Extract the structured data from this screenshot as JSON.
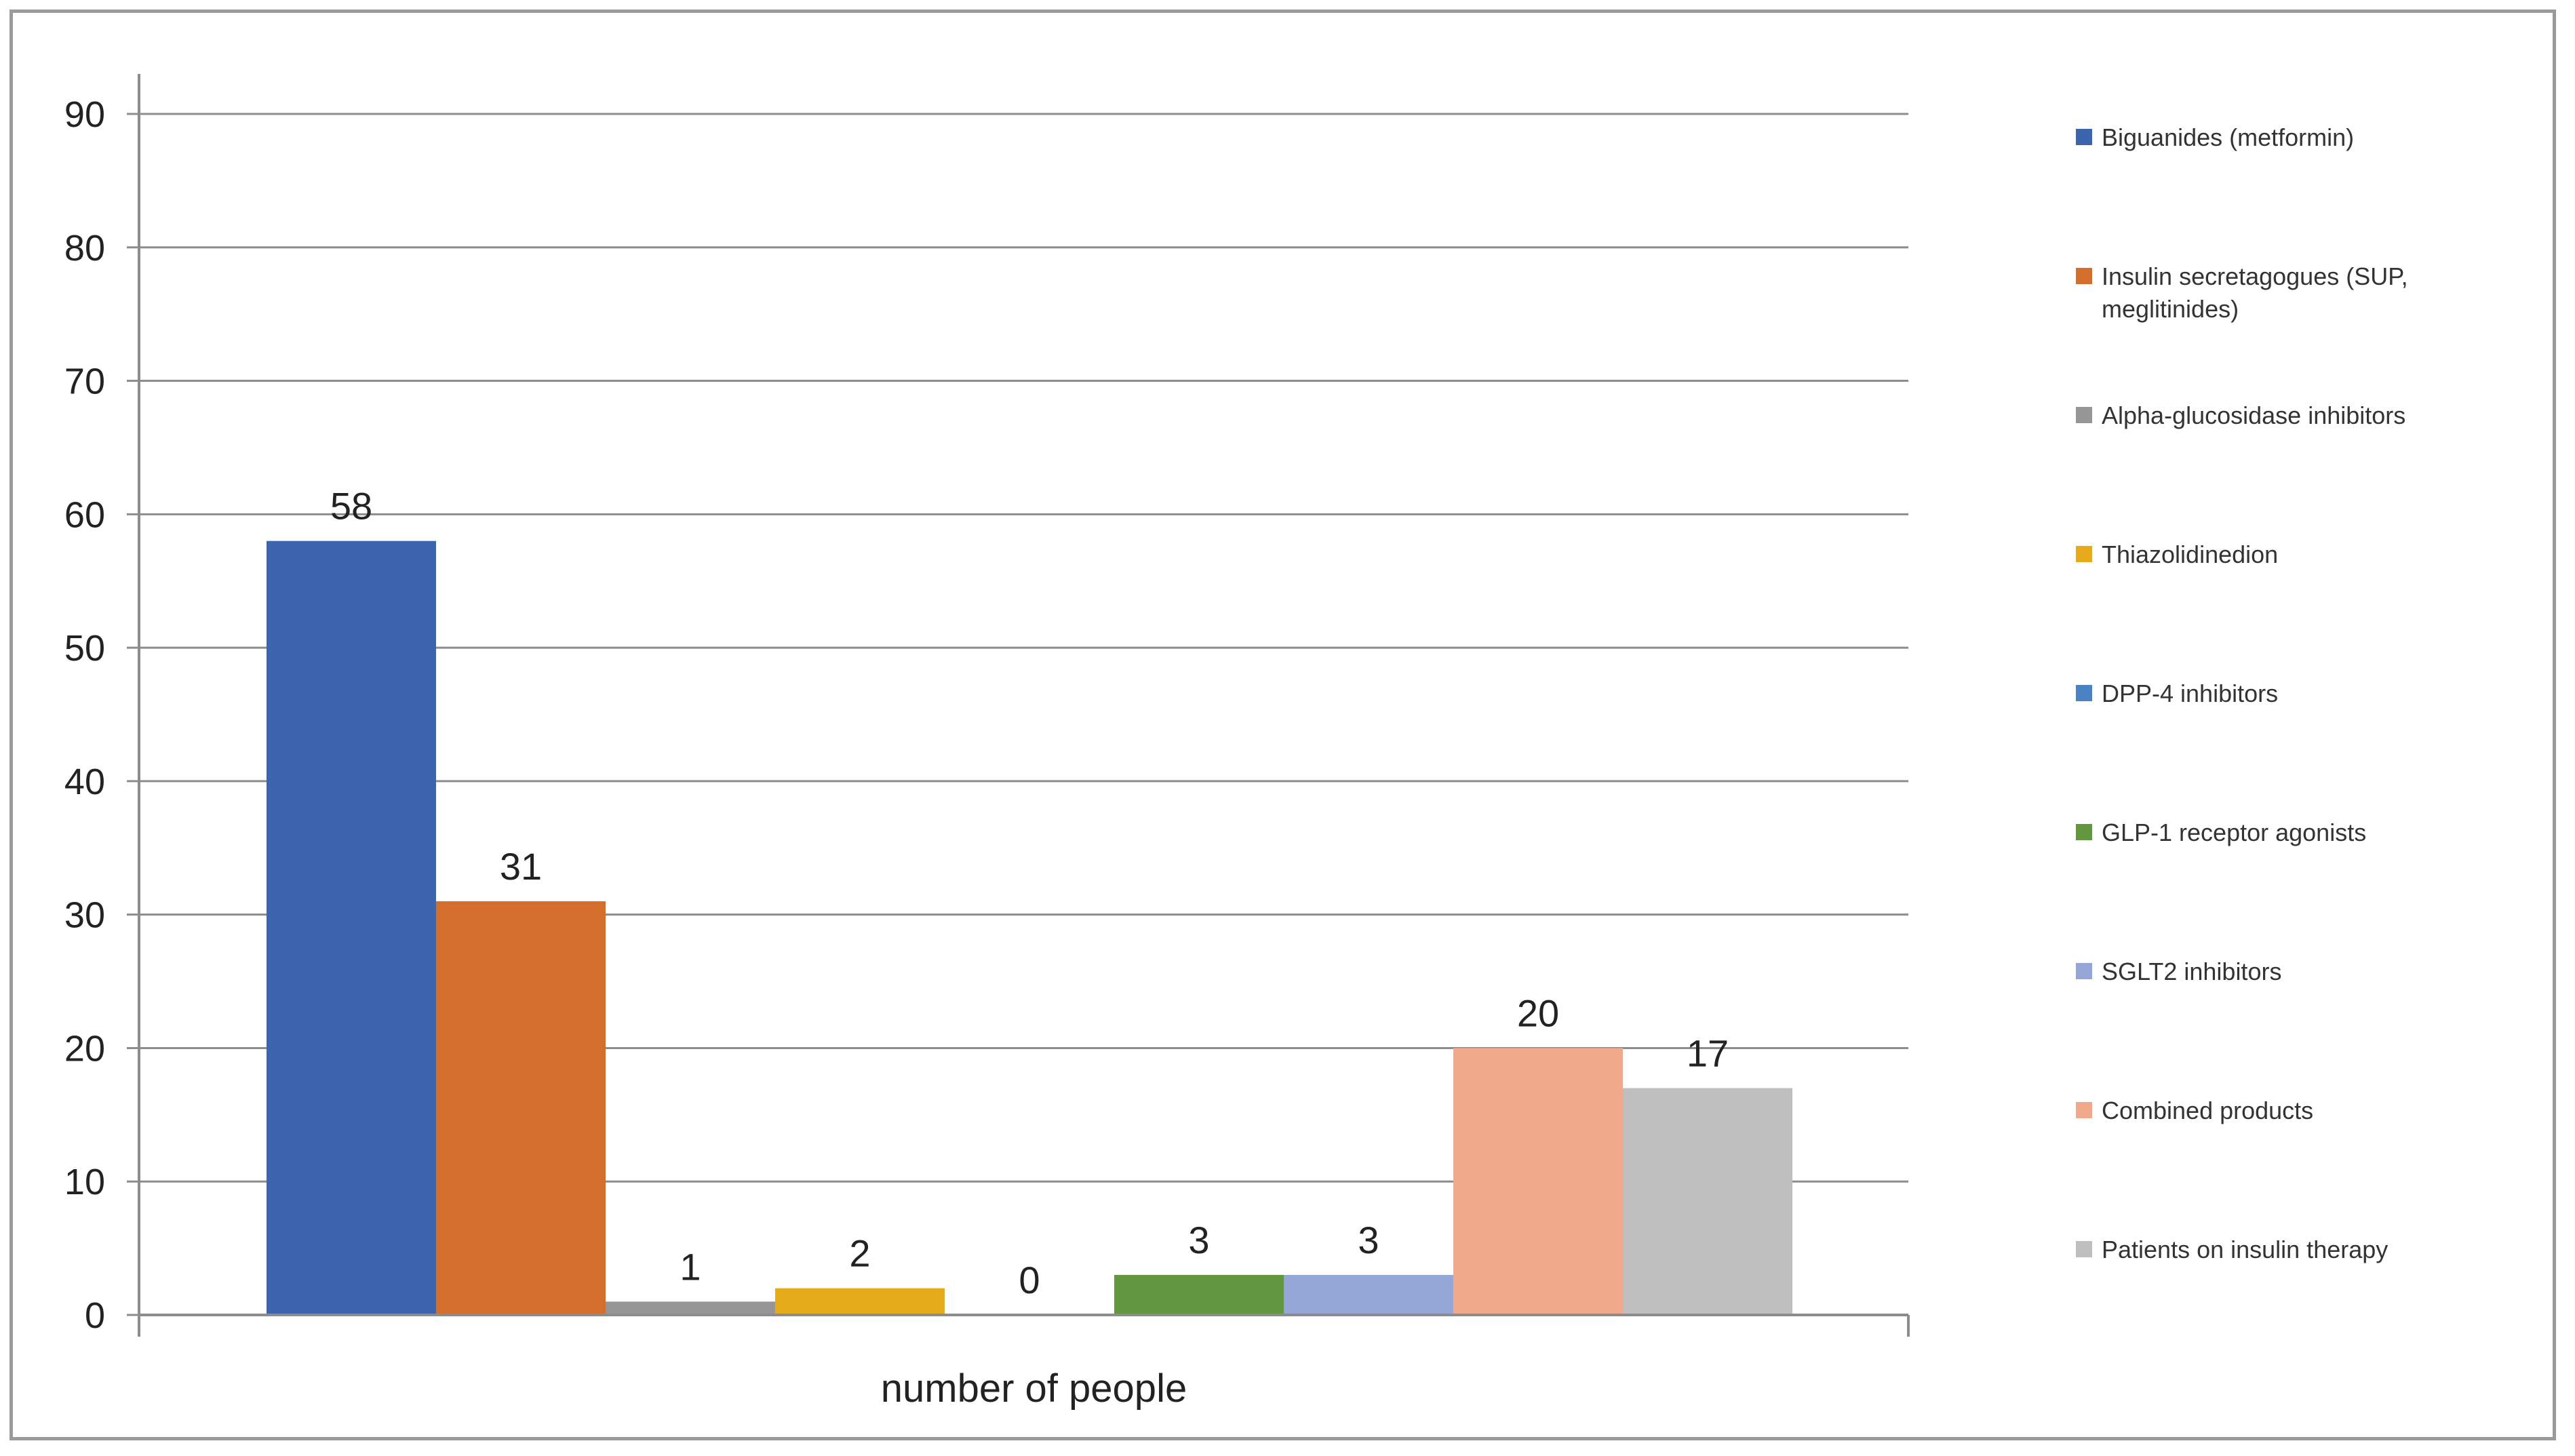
{
  "chart_data": {
    "type": "bar",
    "title": "",
    "xlabel": "number of people",
    "ylabel": "",
    "categories": [
      "number of people"
    ],
    "ylim": [
      0,
      90
    ],
    "yticks": [
      0,
      10,
      20,
      30,
      40,
      50,
      60,
      70,
      80,
      90
    ],
    "grid": true,
    "legend_position": "right",
    "series": [
      {
        "name": "Biguanides (metformin)",
        "value": 58,
        "color": "#3d65ad"
      },
      {
        "name": "Insulin secretagogues (SUP, meglitinides)",
        "value": 31,
        "color": "#d36e2c"
      },
      {
        "name": "Alpha-glucosidase inhibitors",
        "value": 1,
        "color": "#969696"
      },
      {
        "name": "Thiazolidinedion",
        "value": 2,
        "color": "#e6ab1a"
      },
      {
        "name": "DPP-4 inhibitors",
        "value": 0,
        "color": "#4a83c4"
      },
      {
        "name": "GLP-1 receptor agonists",
        "value": 3,
        "color": "#62973f"
      },
      {
        "name": "SGLT2 inhibitors",
        "value": 3,
        "color": "#93a6d6"
      },
      {
        "name": "Combined products",
        "value": 20,
        "color": "#f0a98a"
      },
      {
        "name": "Patients on insulin therapy",
        "value": 17,
        "color": "#bfbfbf"
      }
    ]
  }
}
